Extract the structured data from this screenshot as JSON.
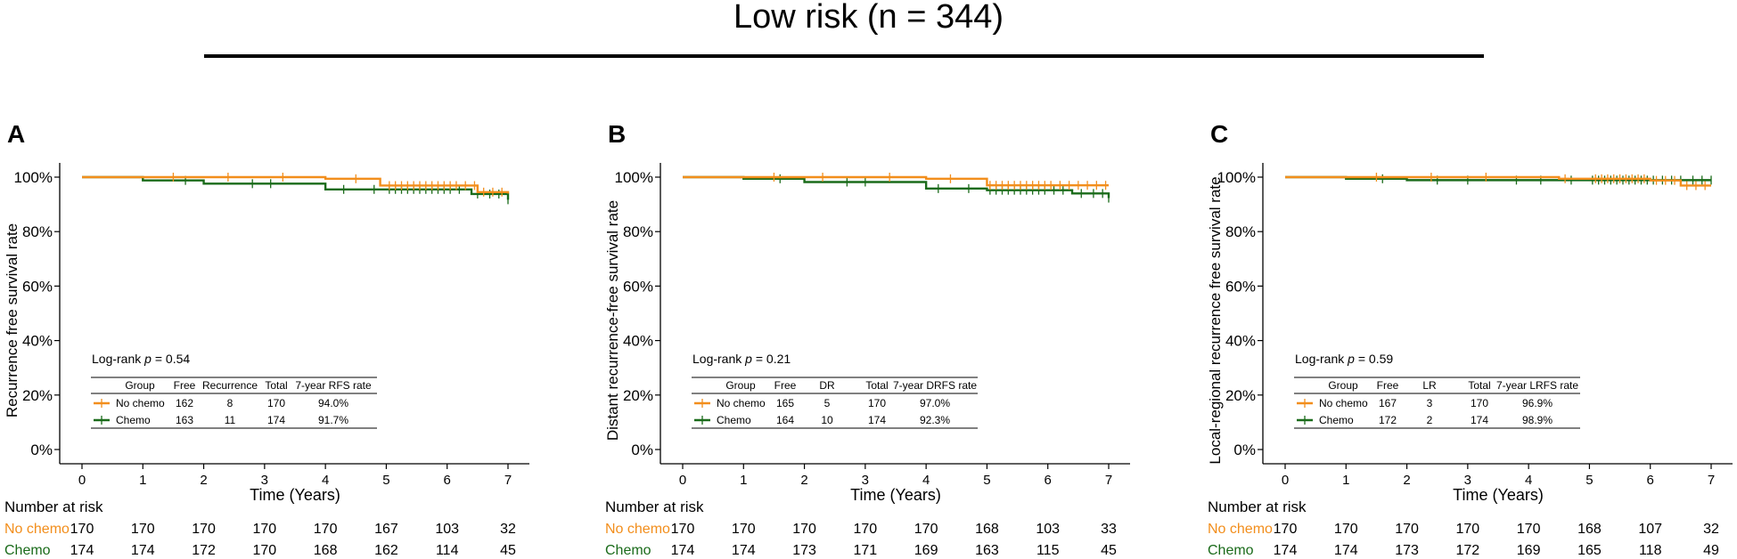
{
  "header": {
    "title": "Low risk (n = 344)"
  },
  "colors": {
    "no_chemo": "#F28E1C",
    "chemo": "#1A6B1A",
    "axis": "#000000"
  },
  "risk_table": {
    "heading": "Number at risk"
  },
  "table_headers": {
    "group": "Group",
    "free": "Free",
    "total": "Total"
  },
  "chart_data": [
    {
      "type": "line",
      "panel_label": "A",
      "title": "",
      "xlabel": "Time (Years)",
      "ylabel": "Recurrence free survival rate",
      "xlim": [
        0,
        7
      ],
      "ylim": [
        0,
        1
      ],
      "x_ticks": [
        "0",
        "1",
        "2",
        "3",
        "4",
        "5",
        "6",
        "7"
      ],
      "y_ticks": [
        "0%",
        "20%",
        "40%",
        "60%",
        "80%",
        "100%"
      ],
      "logrank": {
        "prefix": "Log-rank ",
        "p_symbol": "p",
        "value": " = 0.54"
      },
      "table": {
        "event_header": "Recurrence",
        "rate_header": "7-year RFS rate",
        "rows": [
          {
            "group": "No chemo",
            "free": "162",
            "event": "8",
            "total": "170",
            "rate": "94.0%"
          },
          {
            "group": "Chemo",
            "free": "163",
            "event": "11",
            "total": "174",
            "rate": "91.7%"
          }
        ]
      },
      "series": [
        {
          "name": "No chemo",
          "steps": [
            [
              0,
              1.0
            ],
            [
              4.0,
              0.994
            ],
            [
              4.9,
              0.969
            ],
            [
              6.5,
              0.945
            ],
            [
              7.0,
              0.94
            ]
          ],
          "censor": [
            1.5,
            2.4,
            3.3,
            4.5,
            5.05,
            5.15,
            5.25,
            5.35,
            5.45,
            5.55,
            5.65,
            5.75,
            5.85,
            5.95,
            6.05,
            6.15,
            6.3,
            6.45,
            6.6,
            6.75,
            6.9
          ]
        },
        {
          "name": "Chemo",
          "steps": [
            [
              0,
              1.0
            ],
            [
              1.0,
              0.988
            ],
            [
              2.0,
              0.976
            ],
            [
              4.0,
              0.955
            ],
            [
              6.4,
              0.938
            ],
            [
              7.0,
              0.917
            ]
          ],
          "censor": [
            1.7,
            2.8,
            3.1,
            4.3,
            4.8,
            5.05,
            5.15,
            5.25,
            5.35,
            5.45,
            5.55,
            5.65,
            5.75,
            5.85,
            5.95,
            6.05,
            6.2,
            6.5,
            6.7,
            6.85,
            7.0
          ]
        }
      ],
      "at_risk": [
        {
          "group": "No chemo",
          "values": [
            "170",
            "170",
            "170",
            "170",
            "170",
            "167",
            "103",
            "32"
          ]
        },
        {
          "group": "Chemo",
          "values": [
            "174",
            "174",
            "172",
            "170",
            "168",
            "162",
            "114",
            "45"
          ]
        }
      ]
    },
    {
      "type": "line",
      "panel_label": "B",
      "title": "",
      "xlabel": "Time (Years)",
      "ylabel": "Distant recurrence-free survival rate",
      "xlim": [
        0,
        7
      ],
      "ylim": [
        0,
        1
      ],
      "x_ticks": [
        "0",
        "1",
        "2",
        "3",
        "4",
        "5",
        "6",
        "7"
      ],
      "y_ticks": [
        "0%",
        "20%",
        "40%",
        "60%",
        "80%",
        "100%"
      ],
      "logrank": {
        "prefix": "Log-rank ",
        "p_symbol": "p",
        "value": " = 0.21"
      },
      "table": {
        "event_header": "DR",
        "rate_header": "7-year DRFS rate",
        "rows": [
          {
            "group": "No chemo",
            "free": "165",
            "event": "5",
            "total": "170",
            "rate": "97.0%"
          },
          {
            "group": "Chemo",
            "free": "164",
            "event": "10",
            "total": "174",
            "rate": "92.3%"
          }
        ]
      },
      "series": [
        {
          "name": "No chemo",
          "steps": [
            [
              0,
              1.0
            ],
            [
              4.0,
              0.994
            ],
            [
              5.0,
              0.97
            ],
            [
              7.0,
              0.97
            ]
          ],
          "censor": [
            1.5,
            2.3,
            3.4,
            4.4,
            5.05,
            5.15,
            5.25,
            5.35,
            5.45,
            5.55,
            5.65,
            5.75,
            5.85,
            5.95,
            6.05,
            6.2,
            6.35,
            6.5,
            6.65,
            6.8,
            6.95
          ]
        },
        {
          "name": "Chemo",
          "steps": [
            [
              0,
              1.0
            ],
            [
              1.0,
              0.994
            ],
            [
              2.0,
              0.982
            ],
            [
              4.0,
              0.958
            ],
            [
              5.0,
              0.952
            ],
            [
              6.4,
              0.94
            ],
            [
              7.0,
              0.923
            ]
          ],
          "censor": [
            1.6,
            2.7,
            3.0,
            4.2,
            4.7,
            5.05,
            5.15,
            5.25,
            5.35,
            5.45,
            5.55,
            5.65,
            5.75,
            5.85,
            5.95,
            6.1,
            6.25,
            6.55,
            6.75,
            6.9,
            7.0
          ]
        }
      ],
      "at_risk": [
        {
          "group": "No chemo",
          "values": [
            "170",
            "170",
            "170",
            "170",
            "170",
            "168",
            "103",
            "33"
          ]
        },
        {
          "group": "Chemo",
          "values": [
            "174",
            "174",
            "173",
            "171",
            "169",
            "163",
            "115",
            "45"
          ]
        }
      ]
    },
    {
      "type": "line",
      "panel_label": "C",
      "title": "",
      "xlabel": "Time (Years)",
      "ylabel": "Local-regional recurrence free survival rate",
      "xlim": [
        0,
        7
      ],
      "ylim": [
        0,
        1
      ],
      "x_ticks": [
        "0",
        "1",
        "2",
        "3",
        "4",
        "5",
        "6",
        "7"
      ],
      "y_ticks": [
        "0%",
        "20%",
        "40%",
        "60%",
        "80%",
        "100%"
      ],
      "logrank": {
        "prefix": "Log-rank ",
        "p_symbol": "p",
        "value": " = 0.59"
      },
      "table": {
        "event_header": "LR",
        "rate_header": "7-year LRFS rate",
        "rows": [
          {
            "group": "No chemo",
            "free": "167",
            "event": "3",
            "total": "170",
            "rate": "96.9%"
          },
          {
            "group": "Chemo",
            "free": "172",
            "event": "2",
            "total": "174",
            "rate": "98.9%"
          }
        ]
      },
      "series": [
        {
          "name": "No chemo",
          "steps": [
            [
              0,
              1.0
            ],
            [
              4.5,
              0.994
            ],
            [
              6.0,
              0.988
            ],
            [
              6.5,
              0.969
            ],
            [
              7.0,
              0.969
            ]
          ],
          "censor": [
            1.5,
            2.4,
            3.3,
            4.6,
            5.1,
            5.2,
            5.3,
            5.4,
            5.5,
            5.6,
            5.7,
            5.8,
            5.9,
            6.1,
            6.25,
            6.4,
            6.6,
            6.75,
            6.9
          ]
        },
        {
          "name": "Chemo",
          "steps": [
            [
              0,
              1.0
            ],
            [
              1.0,
              0.994
            ],
            [
              2.0,
              0.989
            ],
            [
              7.0,
              0.989
            ]
          ],
          "censor": [
            1.6,
            2.5,
            3.0,
            3.8,
            4.2,
            4.7,
            5.05,
            5.15,
            5.25,
            5.35,
            5.45,
            5.55,
            5.65,
            5.75,
            5.85,
            5.95,
            6.05,
            6.2,
            6.35,
            6.5,
            6.7,
            6.85,
            7.0
          ]
        }
      ],
      "at_risk": [
        {
          "group": "No chemo",
          "values": [
            "170",
            "170",
            "170",
            "170",
            "170",
            "168",
            "107",
            "32"
          ]
        },
        {
          "group": "Chemo",
          "values": [
            "174",
            "174",
            "173",
            "172",
            "169",
            "165",
            "118",
            "49"
          ]
        }
      ]
    }
  ]
}
